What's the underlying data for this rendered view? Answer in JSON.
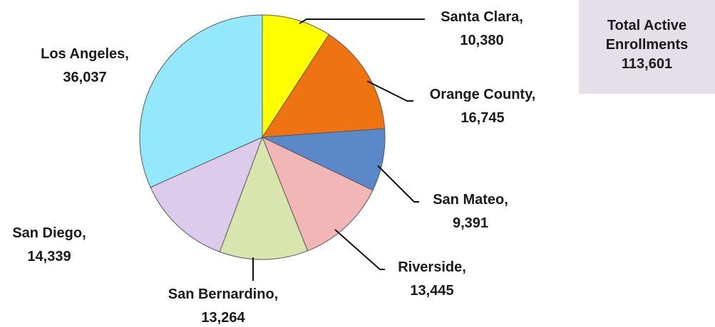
{
  "chart_data": {
    "type": "pie",
    "slices": [
      {
        "name": "Santa Clara",
        "label_value": "10,380",
        "value": 10380,
        "color": "#ffff00"
      },
      {
        "name": "Orange County",
        "label_value": "16,745",
        "value": 16745,
        "color": "#f07311"
      },
      {
        "name": "San Mateo",
        "label_value": "9,391",
        "value": 9391,
        "color": "#5b88c8"
      },
      {
        "name": "Riverside",
        "label_value": "13,445",
        "value": 13445,
        "color": "#f2b6b6"
      },
      {
        "name": "San Bernardino",
        "label_value": "13,264",
        "value": 13264,
        "color": "#d8e6ad"
      },
      {
        "name": "San Diego",
        "label_value": "14,339",
        "value": 14339,
        "color": "#dccbea"
      },
      {
        "name": "Los Angeles",
        "label_value": "36,037",
        "value": 36037,
        "color": "#93e8fb"
      }
    ],
    "start": "12 o'clock, clockwise"
  },
  "total_box": {
    "line1": "Total Active",
    "line2": "Enrollments",
    "value": "113,601",
    "background": "#e5dfea"
  }
}
